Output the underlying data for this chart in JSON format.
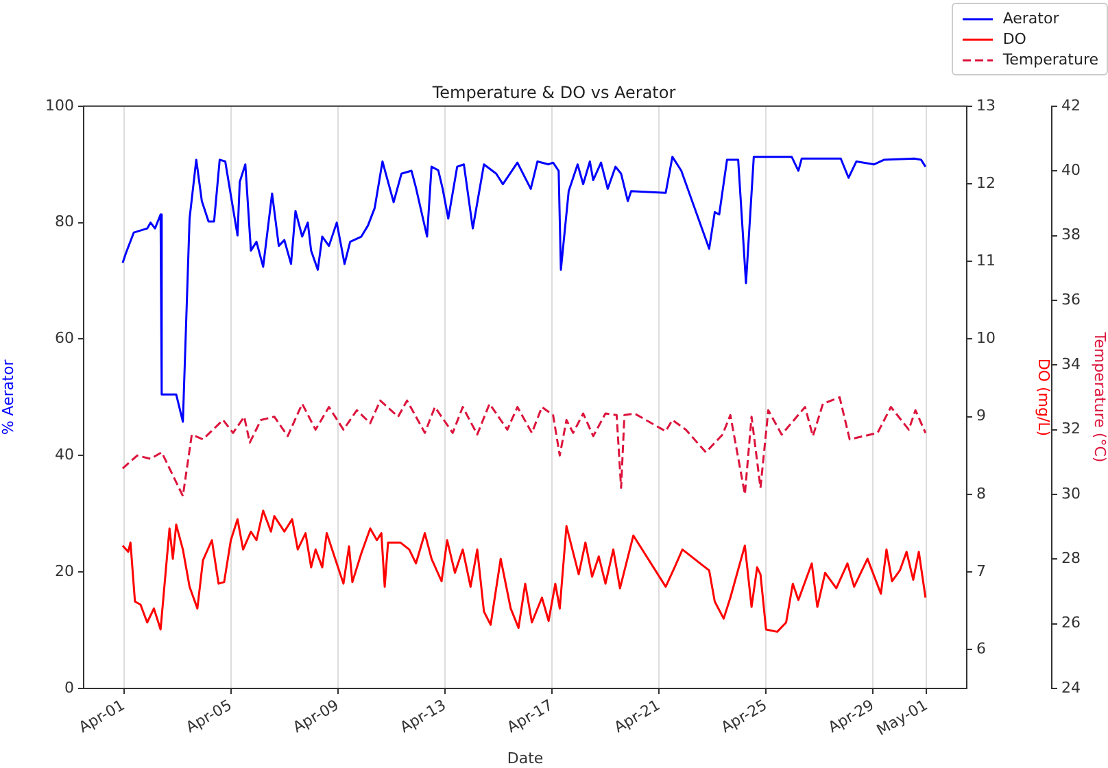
{
  "chart_data": {
    "type": "line",
    "title": "Temperature & DO vs Aerator",
    "xlabel": "Date",
    "ylabel": "% Aerator",
    "y2label": "DO (mg/L)",
    "y3label": "Temperature (°C)",
    "xlim": [
      "--03-30T12:00",
      "--05-02T12:00"
    ],
    "xticks": [
      {
        "value": "--04-01",
        "label": "Apr-01"
      },
      {
        "value": "--04-05",
        "label": "Apr-05"
      },
      {
        "value": "--04-09",
        "label": "Apr-09"
      },
      {
        "value": "--04-13",
        "label": "Apr-13"
      },
      {
        "value": "--04-17",
        "label": "Apr-17"
      },
      {
        "value": "--04-21",
        "label": "Apr-21"
      },
      {
        "value": "--04-25",
        "label": "Apr-25"
      },
      {
        "value": "--04-29",
        "label": "Apr-29"
      },
      {
        "value": "--05-01",
        "label": "May-01"
      }
    ],
    "ylim": [
      0,
      100
    ],
    "yticks": [
      0,
      20,
      40,
      60,
      80,
      100
    ],
    "y2lim": [
      5.5,
      13
    ],
    "y2ticks": [
      6,
      7,
      8,
      9,
      10,
      11,
      12,
      13
    ],
    "y3lim": [
      24,
      42
    ],
    "y3ticks": [
      24,
      26,
      28,
      30,
      32,
      34,
      36,
      38,
      40,
      42
    ],
    "grid": "x",
    "legend": "top right",
    "marker": "none",
    "series": [
      {
        "name": "Aerator",
        "color": "#0000ff",
        "axis": "y",
        "line_style": "solid",
        "x": [
          "--03-31T23:00",
          "--04-01T02:00",
          "--04-01T09:00",
          "--04-01T21:00",
          "--04-02T00:00",
          "--04-02T04:00",
          "--04-02T09:00",
          "--04-02T10:00",
          "--04-02T23:00",
          "--04-03T05:00",
          "--04-03T11:00",
          "--04-03T17:00",
          "--04-03T22:00",
          "--04-04T04:00",
          "--04-04T09:00",
          "--04-04T14:00",
          "--04-04T19:00",
          "--04-05T00:00",
          "--04-05T06:00",
          "--04-05T08:00",
          "--04-05T13:00",
          "--04-05T18:00",
          "--04-05T23:00",
          "--04-06T05:00",
          "--04-06T13:00",
          "--04-06T19:00",
          "--04-07T00:00",
          "--04-07T06:00",
          "--04-07T10:00",
          "--04-07T16:00",
          "--04-07T21:00",
          "--04-08T00:00",
          "--04-08T06:00",
          "--04-08T10:00",
          "--04-08T16:00",
          "--04-08T23:00",
          "--04-09T06:00",
          "--04-09T11:00",
          "--04-09T21:00",
          "--04-10T03:00",
          "--04-10T09:00",
          "--04-10T16:00",
          "--04-10T21:00",
          "--04-11T02:00",
          "--04-11T09:00",
          "--04-11T18:00",
          "--04-11T22:00",
          "--04-12T08:00",
          "--04-12T12:00",
          "--04-12T18:00",
          "--04-12T22:00",
          "--04-13T03:00",
          "--04-13T11:00",
          "--04-13T17:00",
          "--04-14T01:00",
          "--04-14T11:00",
          "--04-14T22:00",
          "--04-15T04:00",
          "--04-15T17:00",
          "--04-16T05:00",
          "--04-16T11:00",
          "--04-16T21:00",
          "--04-17T01:00",
          "--04-17T06:00",
          "--04-17T08:00",
          "--04-17T15:00",
          "--04-17T23:00",
          "--04-18T04:00",
          "--04-18T10:00",
          "--04-18T13:00",
          "--04-18T20:00",
          "--04-19T02:00",
          "--04-19T09:00",
          "--04-19T14:00",
          "--04-19T20:00",
          "--04-19T23:00",
          "--04-21T06:00",
          "--04-21T12:00",
          "--04-21T20:00",
          "--04-22T21:00",
          "--04-23T02:00",
          "--04-23T06:00",
          "--04-23T13:00",
          "--04-23T23:00",
          "--04-24T06:00",
          "--04-24T13:00",
          "--04-25T23:00",
          "--04-26T05:00",
          "--04-26T08:00",
          "--04-27T19:00",
          "--04-28T02:00",
          "--04-28T09:00",
          "--04-29T01:00",
          "--04-29T10:00",
          "--04-30T13:00",
          "--04-30T19:00",
          "--04-30T23:00"
        ],
        "values": [
          73.1,
          74.8,
          78.3,
          79,
          80,
          79,
          81.4,
          50.5,
          50.5,
          45.8,
          80.7,
          90.8,
          83.7,
          80.2,
          80.2,
          90.8,
          90.5,
          84.7,
          77.8,
          87,
          90,
          75.2,
          76.7,
          72.4,
          85,
          76,
          77,
          72.9,
          82,
          77.6,
          80,
          75.2,
          71.9,
          77.6,
          76,
          80,
          72.9,
          76.7,
          77.6,
          79.5,
          82.5,
          90.5,
          87,
          83.5,
          88.4,
          88.9,
          86,
          77.6,
          89.6,
          89,
          85.8,
          80.7,
          89.6,
          90,
          79,
          90,
          88.4,
          86.6,
          90.3,
          85.8,
          90.5,
          90,
          90.3,
          88.9,
          71.9,
          85.4,
          90,
          86.6,
          90.5,
          87.3,
          90.3,
          85.8,
          89.6,
          88.4,
          83.7,
          85.4,
          85.1,
          91.3,
          88.9,
          75.5,
          81.8,
          81.4,
          90.8,
          90.8,
          69.6,
          91.3,
          91.3,
          88.9,
          91,
          91,
          87.7,
          90.5,
          90,
          90.8,
          91,
          90.8,
          89.6
        ]
      },
      {
        "name": "DO",
        "color": "#ff0000",
        "axis": "y2",
        "line_style": "solid",
        "x": [
          "--03-31T23:00",
          "--04-01T04:00",
          "--04-01T06:00",
          "--04-01T10:00",
          "--04-01T15:00",
          "--04-01T21:00",
          "--04-02T03:00",
          "--04-02T09:00",
          "--04-02T17:00",
          "--04-02T20:00",
          "--04-02T23:00",
          "--04-03T05:00",
          "--04-03T11:00",
          "--04-03T18:00",
          "--04-03T23:00",
          "--04-04T07:00",
          "--04-04T13:00",
          "--04-04T18:00",
          "--04-05T00:00",
          "--04-05T06:00",
          "--04-05T11:00",
          "--04-05T18:00",
          "--04-05T23:00",
          "--04-06T05:00",
          "--04-06T12:00",
          "--04-06T15:00",
          "--04-07T00:00",
          "--04-07T07:00",
          "--04-07T12:00",
          "--04-07T19:00",
          "--04-08T00:00",
          "--04-08T04:00",
          "--04-08T10:00",
          "--04-08T14:00",
          "--04-08T23:00",
          "--04-09T05:00",
          "--04-09T10:00",
          "--04-09T13:00",
          "--04-09T21:00",
          "--04-10T05:00",
          "--04-10T11:00",
          "--04-10T15:00",
          "--04-10T18:00",
          "--04-10T21:00",
          "--04-11T08:00",
          "--04-11T16:00",
          "--04-11T22:00",
          "--04-12T06:00",
          "--04-12T12:00",
          "--04-12T21:00",
          "--04-13T02:00",
          "--04-13T09:00",
          "--04-13T16:00",
          "--04-13T23:00",
          "--04-14T05:00",
          "--04-14T11:00",
          "--04-14T17:00",
          "--04-15T02:00",
          "--04-15T11:00",
          "--04-15T18:00",
          "--04-16T00:00",
          "--04-16T06:00",
          "--04-16T15:00",
          "--04-16T21:00",
          "--04-17T03:00",
          "--04-17T07:00",
          "--04-17T13:00",
          "--04-18T00:00",
          "--04-18T06:00",
          "--04-18T12:00",
          "--04-18T18:00",
          "--04-19T00:00",
          "--04-19T07:00",
          "--04-19T13:00",
          "--04-20T01:00",
          "--04-21T06:00",
          "--04-21T14:00",
          "--04-21T21:00",
          "--04-22T21:00",
          "--04-23T02:00",
          "--04-23T10:00",
          "--04-23T16:00",
          "--04-24T05:00",
          "--04-24T11:00",
          "--04-24T16:00",
          "--04-24T19:00",
          "--04-25T00:00",
          "--04-25T10:00",
          "--04-25T18:00",
          "--04-26T00:00",
          "--04-26T05:00",
          "--04-26T17:00",
          "--04-26T22:00",
          "--04-27T05:00",
          "--04-27T15:00",
          "--04-28T01:00",
          "--04-28T07:00",
          "--04-28T19:00",
          "--04-29T07:00",
          "--04-29T12:00",
          "--04-29T17:00",
          "--04-30T00:00",
          "--04-30T06:00",
          "--04-30T12:00",
          "--04-30T17:00",
          "--04-30T23:00"
        ],
        "values": [
          7.34,
          7.26,
          7.38,
          6.62,
          6.58,
          6.35,
          6.53,
          6.26,
          7.56,
          7.17,
          7.61,
          7.29,
          6.81,
          6.53,
          7.15,
          7.41,
          6.85,
          6.87,
          7.41,
          7.68,
          7.29,
          7.52,
          7.41,
          7.79,
          7.52,
          7.72,
          7.52,
          7.68,
          7.29,
          7.5,
          7.06,
          7.29,
          7.06,
          7.5,
          7.11,
          6.85,
          7.33,
          6.87,
          7.24,
          7.56,
          7.41,
          7.5,
          6.81,
          7.38,
          7.38,
          7.29,
          7.11,
          7.5,
          7.17,
          6.88,
          7.41,
          6.99,
          7.29,
          6.81,
          7.29,
          6.49,
          6.32,
          7.17,
          6.53,
          6.28,
          6.85,
          6.35,
          6.67,
          6.37,
          6.85,
          6.53,
          7.59,
          6.97,
          7.38,
          6.94,
          7.2,
          6.85,
          7.29,
          6.79,
          7.47,
          6.81,
          7.06,
          7.29,
          7.02,
          6.62,
          6.4,
          6.67,
          7.34,
          6.55,
          7.06,
          6.97,
          6.26,
          6.23,
          6.35,
          6.85,
          6.64,
          7.11,
          6.55,
          6.99,
          6.79,
          7.11,
          6.81,
          7.17,
          6.72,
          7.29,
          6.88,
          7.02,
          7.26,
          6.9,
          7.26,
          6.67
        ]
      },
      {
        "name": "Temperature",
        "color": "#dc143c",
        "axis": "y3",
        "line_style": "dashed",
        "x": [
          "--03-31T23:00",
          "--04-01T12:00",
          "--04-02T00:00",
          "--04-02T10:00",
          "--04-03T05:00",
          "--04-03T13:00",
          "--04-03T23:00",
          "--04-04T17:00",
          "--04-05T02:00",
          "--04-05T12:00",
          "--04-05T17:00",
          "--04-06T03:00",
          "--04-06T15:00",
          "--04-07T03:00",
          "--04-07T16:00",
          "--04-08T04:00",
          "--04-08T16:00",
          "--04-09T05:00",
          "--04-09T17:00",
          "--04-10T05:00",
          "--04-10T14:00",
          "--04-11T06:00",
          "--04-11T14:00",
          "--04-12T06:00",
          "--04-12T15:00",
          "--04-13T07:00",
          "--04-13T16:00",
          "--04-14T05:00",
          "--04-14T16:00",
          "--04-15T08:00",
          "--04-15T17:00",
          "--04-16T06:00",
          "--04-16T15:00",
          "--04-17T01:00",
          "--04-17T07:00",
          "--04-17T13:00",
          "--04-17T19:00",
          "--04-18T04:00",
          "--04-18T13:00",
          "--04-19T00:00",
          "--04-19T10:00",
          "--04-19T14:00",
          "--04-19T17:00",
          "--04-20T02:00",
          "--04-21T06:00",
          "--04-21T12:00",
          "--04-22T00:00",
          "--04-22T18:00",
          "--04-23T09:00",
          "--04-23T16:00",
          "--04-24T05:00",
          "--04-24T11:00",
          "--04-24T19:00",
          "--04-25T02:00",
          "--04-25T14:00",
          "--04-26T11:00",
          "--04-26T18:00",
          "--04-27T03:00",
          "--04-27T18:00",
          "--04-28T03:00",
          "--04-29T04:00",
          "--04-29T16:00",
          "--04-30T08:00",
          "--04-30T14:00",
          "--04-30T23:00"
        ],
        "values": [
          30.8,
          31.2,
          31.1,
          31.3,
          29.95,
          31.85,
          31.7,
          32.3,
          31.9,
          32.4,
          31.6,
          32.3,
          32.4,
          31.8,
          32.8,
          32.0,
          32.7,
          32.0,
          32.6,
          32.2,
          32.9,
          32.4,
          32.9,
          31.9,
          32.7,
          31.9,
          32.7,
          31.85,
          32.8,
          32.0,
          32.7,
          31.9,
          32.7,
          32.45,
          31.2,
          32.3,
          31.9,
          32.5,
          31.8,
          32.5,
          32.45,
          30.2,
          32.45,
          32.5,
          31.95,
          32.3,
          32.0,
          31.3,
          31.85,
          32.45,
          30.0,
          32.4,
          30.2,
          32.6,
          31.85,
          32.7,
          31.8,
          32.8,
          33.0,
          31.7,
          31.9,
          32.7,
          32.0,
          32.6,
          31.9
        ]
      }
    ]
  }
}
